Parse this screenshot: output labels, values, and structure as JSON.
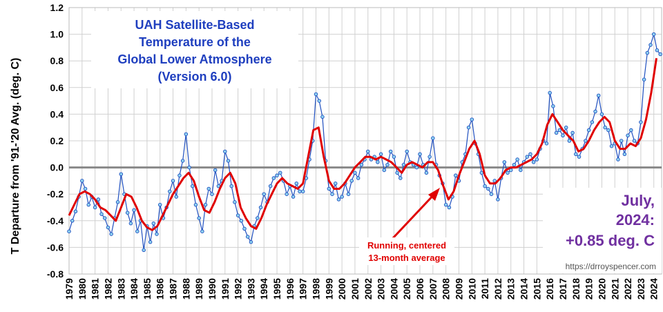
{
  "chart_data": {
    "type": "line",
    "title_lines": [
      "UAH Satellite-Based",
      "Temperature of the",
      "Global Lower Atmosphere",
      "(Version 6.0)"
    ],
    "ylabel": "T Departure from '91-'20 Avg. (deg. C)",
    "ylim": [
      -0.8,
      1.2
    ],
    "yticks": [
      "-0.8",
      "-0.6",
      "-0.4",
      "-0.2",
      "0.0",
      "0.2",
      "0.4",
      "0.6",
      "0.8",
      "1.0",
      "1.2"
    ],
    "xlim": [
      1979.0,
      2024.6
    ],
    "xticks": [
      "1979",
      "1980",
      "1981",
      "1982",
      "1983",
      "1984",
      "1985",
      "1986",
      "1987",
      "1988",
      "1989",
      "1990",
      "1991",
      "1992",
      "1993",
      "1994",
      "1995",
      "1996",
      "1997",
      "1998",
      "1999",
      "2000",
      "2001",
      "2002",
      "2003",
      "2004",
      "2005",
      "2006",
      "2007",
      "2008",
      "2009",
      "2010",
      "2011",
      "2012",
      "2013",
      "2014",
      "2015",
      "2016",
      "2017",
      "2018",
      "2019",
      "2020",
      "2021",
      "2022",
      "2023",
      "2024"
    ],
    "grid": true,
    "colors": {
      "monthly": "#1f4fbf",
      "marker_fill": "#8fd3f0",
      "running_avg": "#e00000",
      "title": "#1f3fbf",
      "latest_value": "#7030a0",
      "zero_line": "#888888"
    },
    "series": [
      {
        "style": "line+markers",
        "x": [
          1979.0,
          1979.25,
          1979.5,
          1979.75,
          1980.0,
          1980.25,
          1980.5,
          1980.75,
          1981.0,
          1981.25,
          1981.5,
          1981.75,
          1982.0,
          1982.25,
          1982.5,
          1982.75,
          1983.0,
          1983.25,
          1983.5,
          1983.75,
          1984.0,
          1984.25,
          1984.5,
          1984.75,
          1985.0,
          1985.25,
          1985.5,
          1985.75,
          1986.0,
          1986.25,
          1986.5,
          1986.75,
          1987.0,
          1987.25,
          1987.5,
          1987.75,
          1988.0,
          1988.25,
          1988.5,
          1988.75,
          1989.0,
          1989.25,
          1989.5,
          1989.75,
          1990.0,
          1990.25,
          1990.5,
          1990.75,
          1991.0,
          1991.25,
          1991.5,
          1991.75,
          1992.0,
          1992.25,
          1992.5,
          1992.75,
          1993.0,
          1993.25,
          1993.5,
          1993.75,
          1994.0,
          1994.25,
          1994.5,
          1994.75,
          1995.0,
          1995.25,
          1995.5,
          1995.75,
          1996.0,
          1996.25,
          1996.5,
          1996.75,
          1997.0,
          1997.25,
          1997.5,
          1997.75,
          1998.0,
          1998.25,
          1998.5,
          1998.75,
          1999.0,
          1999.25,
          1999.5,
          1999.75,
          2000.0,
          2000.25,
          2000.5,
          2000.75,
          2001.0,
          2001.25,
          2001.5,
          2001.75,
          2002.0,
          2002.25,
          2002.5,
          2002.75,
          2003.0,
          2003.25,
          2003.5,
          2003.75,
          2004.0,
          2004.25,
          2004.5,
          2004.75,
          2005.0,
          2005.25,
          2005.5,
          2005.75,
          2006.0,
          2006.25,
          2006.5,
          2006.75,
          2007.0,
          2007.25,
          2007.5,
          2007.75,
          2008.0,
          2008.25,
          2008.5,
          2008.75,
          2009.0,
          2009.25,
          2009.5,
          2009.75,
          2010.0,
          2010.25,
          2010.5,
          2010.75,
          2011.0,
          2011.25,
          2011.5,
          2011.75,
          2012.0,
          2012.25,
          2012.5,
          2012.75,
          2013.0,
          2013.25,
          2013.5,
          2013.75,
          2014.0,
          2014.25,
          2014.5,
          2014.75,
          2015.0,
          2015.25,
          2015.5,
          2015.75,
          2016.0,
          2016.25,
          2016.5,
          2016.75,
          2017.0,
          2017.25,
          2017.5,
          2017.75,
          2018.0,
          2018.25,
          2018.5,
          2018.75,
          2019.0,
          2019.25,
          2019.5,
          2019.75,
          2020.0,
          2020.25,
          2020.5,
          2020.75,
          2021.0,
          2021.25,
          2021.5,
          2021.75,
          2022.0,
          2022.25,
          2022.5,
          2022.75,
          2023.0,
          2023.25,
          2023.5,
          2023.75,
          2024.0,
          2024.25,
          2024.5
        ],
        "values": [
          -0.48,
          -0.4,
          -0.33,
          -0.22,
          -0.1,
          -0.16,
          -0.28,
          -0.22,
          -0.3,
          -0.24,
          -0.35,
          -0.38,
          -0.45,
          -0.5,
          -0.38,
          -0.26,
          -0.05,
          -0.2,
          -0.34,
          -0.42,
          -0.32,
          -0.48,
          -0.4,
          -0.62,
          -0.44,
          -0.56,
          -0.42,
          -0.5,
          -0.28,
          -0.38,
          -0.3,
          -0.18,
          -0.1,
          -0.22,
          -0.06,
          0.05,
          0.25,
          0.0,
          -0.14,
          -0.28,
          -0.38,
          -0.48,
          -0.28,
          -0.16,
          -0.2,
          -0.02,
          -0.14,
          -0.1,
          0.12,
          0.05,
          -0.14,
          -0.26,
          -0.36,
          -0.4,
          -0.46,
          -0.52,
          -0.56,
          -0.44,
          -0.38,
          -0.3,
          -0.2,
          -0.26,
          -0.14,
          -0.08,
          -0.06,
          -0.04,
          -0.1,
          -0.2,
          -0.14,
          -0.22,
          -0.12,
          -0.18,
          -0.18,
          -0.08,
          0.06,
          0.2,
          0.55,
          0.5,
          0.38,
          0.05,
          -0.16,
          -0.2,
          -0.12,
          -0.24,
          -0.22,
          -0.12,
          -0.2,
          -0.1,
          -0.04,
          -0.08,
          0.02,
          0.06,
          0.12,
          0.06,
          0.08,
          0.04,
          0.1,
          -0.02,
          0.02,
          0.12,
          0.08,
          -0.04,
          -0.08,
          0.02,
          0.12,
          0.04,
          0.02,
          0.0,
          0.1,
          0.02,
          -0.04,
          0.08,
          0.22,
          0.02,
          -0.06,
          -0.12,
          -0.28,
          -0.3,
          -0.22,
          -0.06,
          -0.1,
          0.04,
          0.1,
          0.3,
          0.36,
          0.18,
          0.1,
          -0.04,
          -0.14,
          -0.16,
          -0.2,
          -0.1,
          -0.24,
          -0.08,
          0.04,
          -0.04,
          -0.02,
          0.02,
          0.06,
          -0.02,
          0.04,
          0.08,
          0.1,
          0.04,
          0.06,
          0.14,
          0.2,
          0.18,
          0.56,
          0.46,
          0.26,
          0.28,
          0.24,
          0.3,
          0.2,
          0.26,
          0.1,
          0.08,
          0.14,
          0.2,
          0.28,
          0.34,
          0.42,
          0.54,
          0.4,
          0.3,
          0.28,
          0.16,
          0.18,
          0.06,
          0.2,
          0.1,
          0.24,
          0.28,
          0.2,
          0.18,
          0.34,
          0.66,
          0.86,
          0.92,
          1.0,
          0.88,
          0.85
        ]
      },
      {
        "name": "Running, centered 13-month average",
        "style": "line",
        "x": [
          1979.0,
          1979.4,
          1979.8,
          1980.2,
          1980.6,
          1981.0,
          1981.4,
          1981.8,
          1982.2,
          1982.6,
          1983.0,
          1983.4,
          1983.8,
          1984.2,
          1984.6,
          1985.0,
          1985.4,
          1985.8,
          1986.2,
          1986.6,
          1987.0,
          1987.4,
          1987.8,
          1988.2,
          1988.6,
          1989.0,
          1989.4,
          1989.8,
          1990.2,
          1990.6,
          1991.0,
          1991.4,
          1991.8,
          1992.2,
          1992.6,
          1993.0,
          1993.4,
          1993.8,
          1994.2,
          1994.6,
          1995.0,
          1995.4,
          1995.8,
          1996.2,
          1996.6,
          1997.0,
          1997.4,
          1997.8,
          1998.2,
          1998.6,
          1999.0,
          1999.4,
          1999.8,
          2000.2,
          2000.6,
          2001.0,
          2001.4,
          2001.8,
          2002.2,
          2002.6,
          2003.0,
          2003.4,
          2003.8,
          2004.2,
          2004.6,
          2005.0,
          2005.4,
          2005.8,
          2006.2,
          2006.6,
          2007.0,
          2007.4,
          2007.8,
          2008.2,
          2008.6,
          2009.0,
          2009.4,
          2009.8,
          2010.2,
          2010.6,
          2011.0,
          2011.4,
          2011.8,
          2012.2,
          2012.6,
          2013.0,
          2013.4,
          2013.8,
          2014.2,
          2014.6,
          2015.0,
          2015.4,
          2015.8,
          2016.2,
          2016.6,
          2017.0,
          2017.4,
          2017.8,
          2018.2,
          2018.6,
          2019.0,
          2019.4,
          2019.8,
          2020.2,
          2020.6,
          2021.0,
          2021.4,
          2021.8,
          2022.2,
          2022.6,
          2023.0,
          2023.4,
          2023.8,
          2024.2
        ],
        "values": [
          -0.36,
          -0.28,
          -0.2,
          -0.18,
          -0.2,
          -0.24,
          -0.3,
          -0.32,
          -0.36,
          -0.4,
          -0.3,
          -0.2,
          -0.22,
          -0.3,
          -0.4,
          -0.45,
          -0.47,
          -0.44,
          -0.36,
          -0.28,
          -0.2,
          -0.14,
          -0.08,
          -0.04,
          -0.1,
          -0.22,
          -0.32,
          -0.34,
          -0.26,
          -0.16,
          -0.08,
          -0.04,
          -0.12,
          -0.3,
          -0.38,
          -0.44,
          -0.46,
          -0.38,
          -0.28,
          -0.2,
          -0.12,
          -0.08,
          -0.12,
          -0.14,
          -0.16,
          -0.12,
          0.08,
          0.28,
          0.3,
          0.08,
          -0.1,
          -0.16,
          -0.16,
          -0.12,
          -0.06,
          0.0,
          0.04,
          0.08,
          0.08,
          0.06,
          0.08,
          0.06,
          0.04,
          0.0,
          -0.04,
          0.02,
          0.04,
          0.02,
          0.0,
          0.04,
          0.04,
          -0.02,
          -0.14,
          -0.24,
          -0.18,
          -0.06,
          0.04,
          0.14,
          0.2,
          0.1,
          -0.06,
          -0.12,
          -0.12,
          -0.08,
          -0.02,
          0.0,
          0.0,
          0.02,
          0.04,
          0.06,
          0.1,
          0.18,
          0.32,
          0.4,
          0.34,
          0.28,
          0.24,
          0.2,
          0.12,
          0.14,
          0.2,
          0.28,
          0.34,
          0.38,
          0.34,
          0.2,
          0.14,
          0.14,
          0.18,
          0.16,
          0.22,
          0.36,
          0.56,
          0.82
        ]
      }
    ],
    "annotations": {
      "running_label": [
        "Running, centered",
        "13-month average"
      ],
      "latest_label": [
        "July,",
        "2024:",
        "+0.85 deg. C"
      ],
      "source": "https://drroyspencer.com"
    }
  }
}
